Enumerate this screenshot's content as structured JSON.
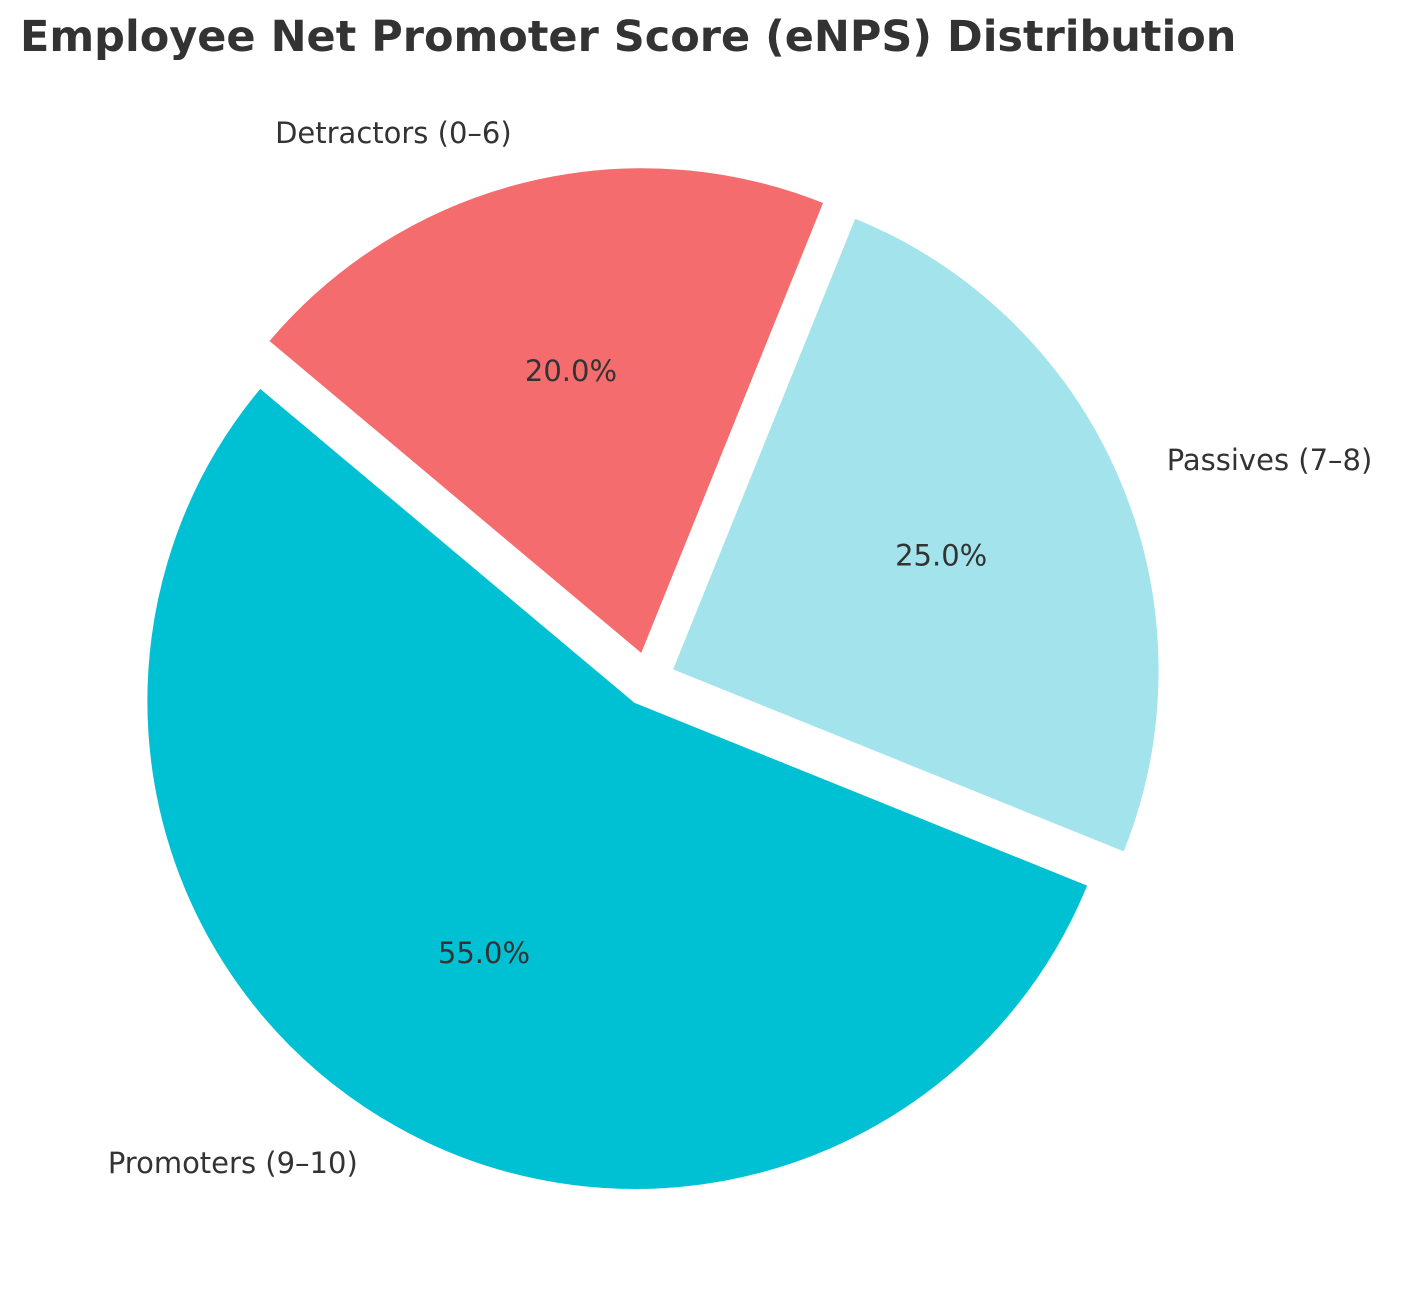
{
  "chart_data": {
    "type": "pie",
    "title": "Employee Net Promoter Score (eNPS) Distribution",
    "categories": [
      "Promoters (9–10)",
      "Passives (7–8)",
      "Detractors (0–6)"
    ],
    "values": [
      55.0,
      25.0,
      20.0
    ],
    "percent_labels": [
      "55.0%",
      "25.0%",
      "20.0%"
    ],
    "colors": [
      "#00c0d4",
      "#a2e3ec",
      "#f56c6e"
    ],
    "exploded": [
      true,
      true,
      true
    ],
    "start_angle_deg": 140,
    "direction": "counterclockwise",
    "legend": "none"
  }
}
